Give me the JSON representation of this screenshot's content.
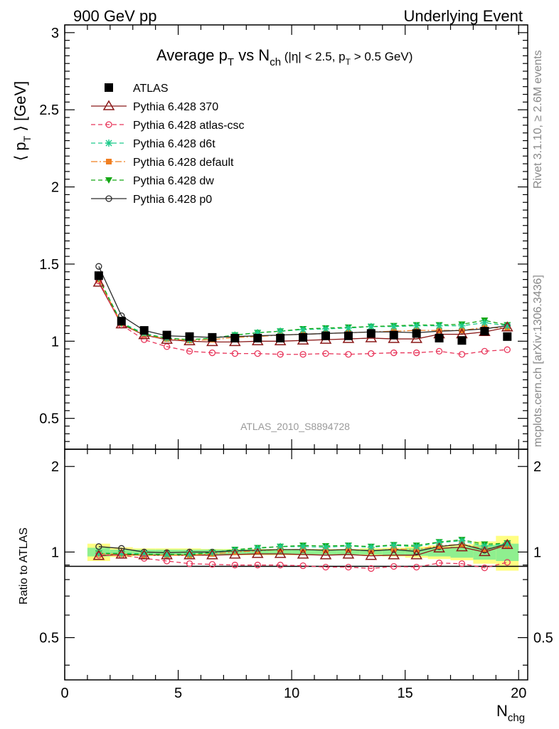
{
  "header": {
    "left": "900 GeV pp",
    "right": "Underlying Event"
  },
  "side_labels": {
    "rivet": "Rivet 3.1.10, ≥ 2.6M events",
    "mcplots": "mcplots.cern.ch [arXiv:1306.3436]"
  },
  "colors": {
    "ATLAS": "#000000",
    "370": "#8b1a1a",
    "atlas-csc": "#e8355a",
    "d6t": "#1ecb8c",
    "default": "#f07f22",
    "dw": "#14a814",
    "p0": "#2b2b2b",
    "band_inner": "#8fef8f",
    "band_outer": "#fffe82"
  },
  "chart_data": [
    {
      "type": "line",
      "title_parts": {
        "a": "Average p",
        "a_sub": "T",
        "b": " vs N",
        "b_sub": "ch",
        "c": " (|η| < 2.5, p",
        "c_sub": "T",
        "d": " > 0.5 GeV)"
      },
      "ylabel": "⟨ p_T ⟩ [GeV]",
      "ylim": [
        0.3,
        3.05
      ],
      "yticks": [
        "0.5",
        "1",
        "1.5",
        "2",
        "2.5",
        "3"
      ],
      "watermark": "ATLAS_2010_S8894728",
      "legend_position": "top-left",
      "x": [
        1.5,
        2.5,
        3.5,
        4.5,
        5.5,
        6.5,
        7.5,
        8.5,
        9.5,
        10.5,
        11.5,
        12.5,
        13.5,
        14.5,
        15.5,
        16.5,
        17.5,
        18.5,
        19.5
      ],
      "series": [
        {
          "name": "ATLAS",
          "key": "ATLAS",
          "marker": "square",
          "values": [
            1.425,
            1.13,
            1.07,
            1.04,
            1.03,
            1.025,
            1.02,
            1.02,
            1.02,
            1.025,
            1.035,
            1.035,
            1.05,
            1.04,
            1.05,
            1.02,
            1.005,
            1.065,
            1.03
          ]
        },
        {
          "name": "Pythia 6.428 370",
          "key": "370",
          "marker": "triangle",
          "values": [
            1.38,
            1.11,
            1.04,
            1.01,
            1.0,
            0.995,
            0.995,
            1.0,
            1.0,
            1.005,
            1.01,
            1.015,
            1.02,
            1.015,
            1.015,
            1.045,
            1.045,
            1.06,
            1.09
          ]
        },
        {
          "name": "Pythia 6.428 atlas-csc",
          "key": "atlas-csc",
          "marker": "circle",
          "values": [
            1.39,
            1.105,
            1.01,
            0.965,
            0.935,
            0.925,
            0.92,
            0.92,
            0.915,
            0.915,
            0.92,
            0.915,
            0.92,
            0.925,
            0.925,
            0.935,
            0.915,
            0.935,
            0.945
          ]
        },
        {
          "name": "Pythia 6.428 d6t",
          "key": "d6t",
          "marker": "star",
          "values": [
            1.41,
            1.12,
            1.05,
            1.02,
            1.01,
            1.02,
            1.04,
            1.055,
            1.065,
            1.075,
            1.08,
            1.085,
            1.095,
            1.095,
            1.1,
            1.1,
            1.1,
            1.12,
            1.1
          ]
        },
        {
          "name": "Pythia 6.428 default",
          "key": "default",
          "marker": "filled-square",
          "values": [
            1.4,
            1.115,
            1.04,
            1.015,
            1.005,
            1.01,
            1.025,
            1.03,
            1.04,
            1.045,
            1.05,
            1.055,
            1.06,
            1.065,
            1.07,
            1.07,
            1.07,
            1.09,
            1.085
          ]
        },
        {
          "name": "Pythia 6.428 dw",
          "key": "dw",
          "marker": "triangle-down",
          "values": [
            1.41,
            1.115,
            1.045,
            1.02,
            1.01,
            1.02,
            1.04,
            1.055,
            1.065,
            1.08,
            1.085,
            1.09,
            1.095,
            1.1,
            1.105,
            1.105,
            1.11,
            1.135,
            1.105
          ]
        },
        {
          "name": "Pythia 6.428 p0",
          "key": "p0",
          "marker": "open-circle",
          "values": [
            1.485,
            1.165,
            1.07,
            1.035,
            1.03,
            1.025,
            1.03,
            1.035,
            1.04,
            1.045,
            1.05,
            1.055,
            1.06,
            1.06,
            1.055,
            1.065,
            1.07,
            1.08,
            1.1
          ]
        }
      ]
    },
    {
      "type": "line",
      "ylabel": "Ratio to ATLAS",
      "xlabel": "N",
      "xlabel_sub": "chg",
      "xlim": [
        0,
        20.4
      ],
      "ylim": [
        0.355,
        2.3
      ],
      "xticks": [
        "0",
        "5",
        "10",
        "15",
        "20"
      ],
      "yticks": [
        "0.5",
        "1",
        "2"
      ],
      "band": {
        "inner_halfwidth": [
          0.035,
          0.02,
          0.02,
          0.02,
          0.02,
          0.02,
          0.02,
          0.02,
          0.02,
          0.02,
          0.02,
          0.02,
          0.02,
          0.025,
          0.03,
          0.035,
          0.045,
          0.06,
          0.07
        ],
        "outer_halfwidth": [
          0.07,
          0.04,
          0.03,
          0.03,
          0.03,
          0.025,
          0.025,
          0.025,
          0.025,
          0.025,
          0.025,
          0.025,
          0.03,
          0.035,
          0.045,
          0.055,
          0.065,
          0.09,
          0.14
        ]
      },
      "series": [
        {
          "name": "Pythia 6.428 370",
          "key": "370",
          "marker": "triangle",
          "values": [
            0.97,
            0.98,
            0.975,
            0.975,
            0.975,
            0.975,
            0.98,
            0.985,
            0.985,
            0.98,
            0.975,
            0.98,
            0.97,
            0.975,
            0.975,
            1.03,
            1.04,
            1.0,
            1.06
          ]
        },
        {
          "name": "Pythia 6.428 atlas-csc",
          "key": "atlas-csc",
          "marker": "circle",
          "values": [
            0.975,
            0.975,
            0.95,
            0.93,
            0.91,
            0.905,
            0.9,
            0.9,
            0.9,
            0.895,
            0.885,
            0.885,
            0.875,
            0.89,
            0.885,
            0.915,
            0.91,
            0.88,
            0.92
          ]
        },
        {
          "name": "Pythia 6.428 d6t",
          "key": "d6t",
          "marker": "star",
          "values": [
            0.99,
            0.99,
            0.985,
            0.98,
            0.985,
            0.995,
            1.015,
            1.03,
            1.045,
            1.045,
            1.04,
            1.05,
            1.04,
            1.055,
            1.045,
            1.08,
            1.095,
            1.05,
            1.07
          ]
        },
        {
          "name": "Pythia 6.428 default",
          "key": "default",
          "marker": "filled-square",
          "values": [
            0.985,
            0.985,
            0.975,
            0.975,
            0.975,
            0.985,
            1.0,
            1.01,
            1.02,
            1.02,
            1.015,
            1.02,
            1.01,
            1.025,
            1.02,
            1.05,
            1.065,
            1.025,
            1.055
          ]
        },
        {
          "name": "Pythia 6.428 dw",
          "key": "dw",
          "marker": "triangle-down",
          "values": [
            0.99,
            0.985,
            0.98,
            0.98,
            0.98,
            0.995,
            1.02,
            1.035,
            1.045,
            1.055,
            1.05,
            1.055,
            1.045,
            1.06,
            1.055,
            1.085,
            1.105,
            1.065,
            1.075
          ]
        },
        {
          "name": "Pythia 6.428 p0",
          "key": "p0",
          "marker": "open-circle",
          "values": [
            1.045,
            1.03,
            1.0,
            0.995,
            1.0,
            1.0,
            1.01,
            1.015,
            1.02,
            1.02,
            1.015,
            1.02,
            1.01,
            1.02,
            1.005,
            1.045,
            1.065,
            1.015,
            1.07
          ]
        }
      ]
    }
  ]
}
